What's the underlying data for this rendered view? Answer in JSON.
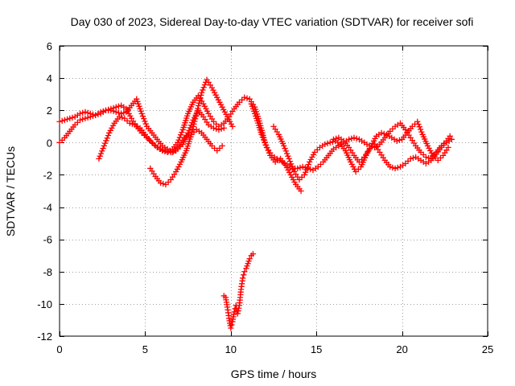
{
  "chart_data": {
    "type": "scatter",
    "title": "Day 030 of 2023, Sidereal Day-to-day VTEC variation (SDTVAR) for receiver sofi",
    "xlabel": "GPS time / hours",
    "ylabel": "SDTVAR / TECUs",
    "xlim": [
      0,
      25
    ],
    "ylim": [
      -12,
      6
    ],
    "xticks": [
      0,
      5,
      10,
      15,
      20,
      25
    ],
    "yticks": [
      -12,
      -10,
      -8,
      -6,
      -4,
      -2,
      0,
      2,
      4,
      6
    ],
    "grid": true,
    "legend": "none",
    "marker": "plus",
    "series": [
      {
        "name": "satellite-track-1",
        "color": "#ff0000",
        "x": [
          0.0,
          0.3,
          0.6,
          0.9,
          1.2,
          1.5,
          1.8,
          2.1,
          2.4,
          2.7,
          3.0,
          3.3,
          3.6,
          3.9,
          4.2,
          4.5,
          4.8,
          5.1,
          5.4,
          5.7,
          6.0,
          6.3,
          6.6,
          6.9,
          7.2,
          7.5,
          7.8,
          8.1,
          8.4,
          8.7,
          9.0,
          9.3,
          9.6,
          9.9,
          10.2,
          10.5,
          10.8,
          11.1,
          11.4,
          11.7,
          12.0,
          12.3,
          12.6,
          12.9,
          13.2,
          13.5,
          13.8,
          14.1
        ],
        "y": [
          1.3,
          1.4,
          1.5,
          1.6,
          1.8,
          1.9,
          1.8,
          1.7,
          1.8,
          2.0,
          2.1,
          2.2,
          2.3,
          2.1,
          1.5,
          1.0,
          0.6,
          0.3,
          0.0,
          -0.3,
          -0.5,
          -0.6,
          -0.4,
          0.0,
          0.8,
          1.8,
          2.5,
          2.9,
          2.4,
          1.8,
          1.3,
          1.0,
          1.2,
          1.6,
          2.1,
          2.5,
          2.8,
          2.7,
          2.2,
          1.2,
          0.0,
          -0.8,
          -1.2,
          -1.0,
          -1.4,
          -2.0,
          -2.6,
          -3.0
        ]
      },
      {
        "name": "satellite-track-2",
        "color": "#ff0000",
        "x": [
          0.0,
          0.3,
          0.6,
          0.9,
          1.2,
          1.5,
          1.8,
          2.1,
          2.4,
          2.7,
          3.0,
          3.3,
          3.6,
          3.9,
          4.2,
          4.5,
          4.8,
          5.1,
          5.4,
          5.7,
          6.0,
          6.3,
          6.6,
          6.9,
          7.2,
          7.5,
          7.8,
          8.1,
          8.4,
          8.7,
          9.0,
          9.3,
          9.6
        ],
        "y": [
          0.0,
          0.3,
          0.7,
          1.1,
          1.4,
          1.5,
          1.6,
          1.7,
          1.9,
          2.0,
          2.0,
          1.9,
          1.8,
          1.9,
          2.3,
          2.7,
          1.8,
          1.0,
          0.6,
          0.2,
          -0.2,
          -0.4,
          -0.6,
          -0.4,
          -0.1,
          0.6,
          1.4,
          2.0,
          1.6,
          1.1,
          0.9,
          0.8,
          0.9
        ]
      },
      {
        "name": "satellite-track-3",
        "color": "#ff0000",
        "x": [
          2.3,
          2.6,
          2.9,
          3.2,
          3.5,
          3.8,
          4.1,
          4.4,
          4.7,
          5.0,
          5.3,
          5.6,
          5.9,
          6.2,
          6.5,
          6.8,
          7.1,
          7.4,
          7.7,
          8.0,
          8.3,
          8.6,
          8.9,
          9.2,
          9.5
        ],
        "y": [
          -1.0,
          -0.2,
          0.6,
          1.2,
          1.6,
          1.5,
          1.2,
          1.1,
          0.9,
          0.5,
          0.1,
          -0.2,
          -0.4,
          -0.5,
          -0.6,
          -0.5,
          0.0,
          0.4,
          0.5,
          0.8,
          0.6,
          0.2,
          -0.2,
          -0.5,
          -0.2
        ]
      },
      {
        "name": "satellite-track-4",
        "color": "#ff0000",
        "x": [
          5.3,
          5.6,
          5.9,
          6.2,
          6.5,
          6.8,
          7.1,
          7.4,
          7.7,
          8.0,
          8.3,
          8.6,
          8.9,
          9.2,
          9.5,
          9.8,
          10.1
        ],
        "y": [
          -1.6,
          -2.1,
          -2.5,
          -2.6,
          -2.3,
          -1.8,
          -1.2,
          -0.5,
          0.5,
          1.8,
          3.1,
          3.9,
          3.4,
          2.8,
          2.2,
          1.6,
          1.0
        ]
      },
      {
        "name": "satellite-track-5",
        "color": "#ff0000",
        "x": [
          9.6,
          9.7,
          9.8,
          9.9,
          10.0,
          10.1,
          10.2,
          10.3,
          10.4,
          10.5,
          10.6,
          10.7,
          10.8,
          10.9,
          11.0,
          11.1,
          11.2,
          11.3
        ],
        "y": [
          -9.5,
          -9.6,
          -10.2,
          -10.9,
          -11.5,
          -11.1,
          -10.5,
          -10.1,
          -10.6,
          -10.1,
          -9.1,
          -8.4,
          -8.0,
          -7.8,
          -7.5,
          -7.2,
          -7.0,
          -6.9
        ]
      },
      {
        "name": "satellite-track-6",
        "color": "#ff0000",
        "x": [
          11.2,
          11.5,
          11.8,
          12.1,
          12.4,
          12.7,
          13.0,
          13.3,
          13.6,
          13.9,
          14.2,
          14.5,
          14.8,
          15.1,
          15.4,
          15.7,
          16.0,
          16.3,
          16.6,
          16.9,
          17.2,
          17.5,
          17.8,
          18.1,
          18.4,
          18.7,
          19.0,
          19.3,
          19.6,
          19.9,
          20.2,
          20.5,
          20.8,
          21.1,
          21.4,
          21.7,
          22.0,
          22.3,
          22.6,
          22.8
        ],
        "y": [
          2.4,
          1.5,
          0.5,
          -0.3,
          -0.8,
          -1.0,
          -1.2,
          -1.4,
          -1.6,
          -1.6,
          -1.5,
          -1.6,
          -1.7,
          -1.5,
          -1.2,
          -0.8,
          -0.4,
          -0.2,
          0.0,
          0.2,
          0.3,
          0.2,
          0.0,
          -0.2,
          -0.3,
          -0.1,
          0.3,
          0.7,
          1.0,
          1.2,
          0.8,
          0.3,
          -0.2,
          -0.6,
          -0.9,
          -1.0,
          -0.6,
          -0.2,
          0.1,
          0.4
        ]
      },
      {
        "name": "satellite-track-7",
        "color": "#ff0000",
        "x": [
          12.5,
          12.8,
          13.1,
          13.4,
          13.7,
          14.0,
          14.3,
          14.6,
          14.9,
          15.2,
          15.5,
          15.8,
          16.1,
          16.4,
          16.7,
          17.0,
          17.3,
          17.6,
          17.9,
          18.2,
          18.5,
          18.8,
          19.1,
          19.4,
          19.7,
          20.0,
          20.3,
          20.6,
          20.9,
          21.2,
          21.5,
          21.8,
          22.1,
          22.4,
          22.7
        ],
        "y": [
          1.0,
          0.5,
          -0.2,
          -1.0,
          -1.8,
          -2.3,
          -2.0,
          -1.2,
          -0.6,
          -0.3,
          -0.1,
          0.0,
          0.1,
          -0.1,
          -0.5,
          -1.2,
          -1.8,
          -1.5,
          -0.8,
          -0.2,
          0.4,
          0.6,
          0.5,
          0.3,
          0.1,
          0.2,
          0.6,
          1.0,
          1.3,
          0.5,
          -0.2,
          -0.8,
          -1.1,
          -0.8,
          -0.3
        ]
      },
      {
        "name": "satellite-track-8",
        "color": "#ff0000",
        "x": [
          16.0,
          16.3,
          16.6,
          16.9,
          17.2,
          17.5,
          17.8,
          18.1,
          18.4,
          18.7,
          19.0,
          19.3,
          19.6,
          19.9,
          20.2,
          20.5,
          20.8,
          21.1,
          21.4,
          21.7,
          22.0,
          22.3,
          22.6,
          22.9
        ],
        "y": [
          0.2,
          0.3,
          0.1,
          -0.3,
          -0.8,
          -1.2,
          -0.9,
          -0.4,
          -0.1,
          -0.6,
          -1.1,
          -1.5,
          -1.6,
          -1.5,
          -1.3,
          -1.0,
          -0.9,
          -1.1,
          -1.3,
          -1.1,
          -0.7,
          -0.3,
          0.0,
          0.2
        ]
      }
    ]
  }
}
